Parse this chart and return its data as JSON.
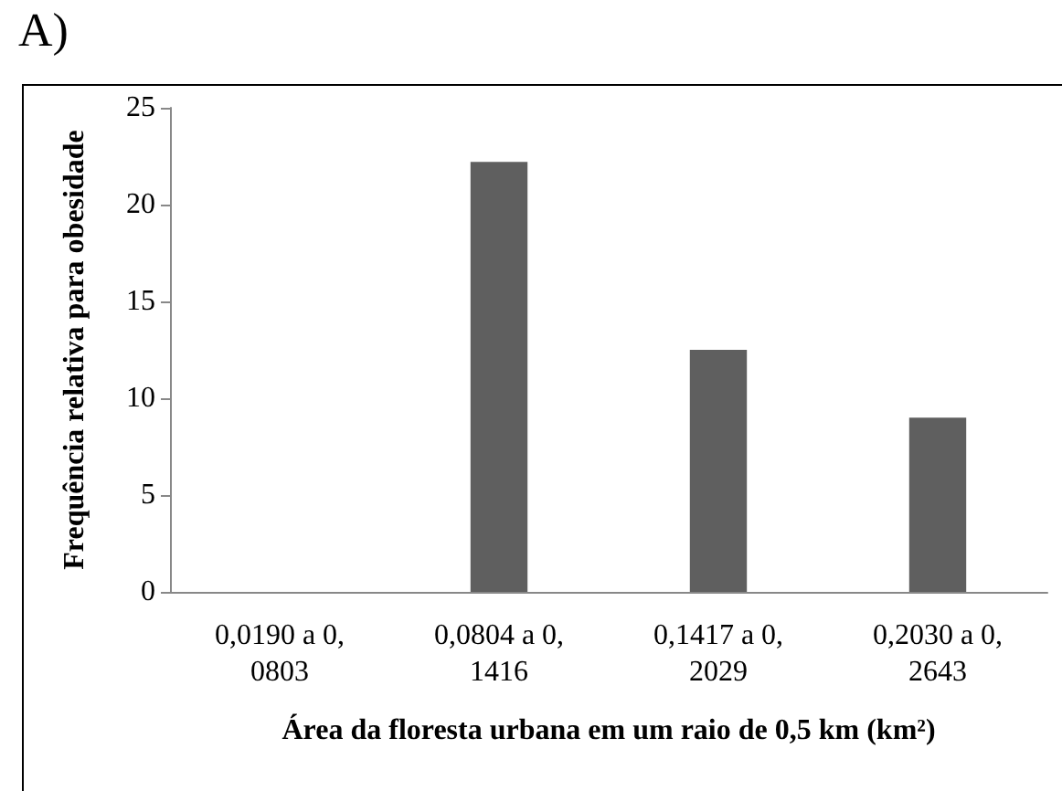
{
  "chart_data": {
    "type": "bar",
    "title": "A)",
    "xlabel": "Área da floresta urbana em um raio de 0,5 km (km²)",
    "ylabel": "Frequência relativa para obesidade",
    "categories": [
      "0,0190 a 0,0803",
      "0,0804 a 0,1416",
      "0,1417 a 0,2029",
      "0,2030 a 0,2643"
    ],
    "values": [
      0,
      22.2,
      12.5,
      9.0
    ],
    "color": "#5f5f5f",
    "ylim": [
      0,
      25
    ],
    "yticks": [
      0,
      5,
      10,
      15,
      20,
      25
    ]
  }
}
